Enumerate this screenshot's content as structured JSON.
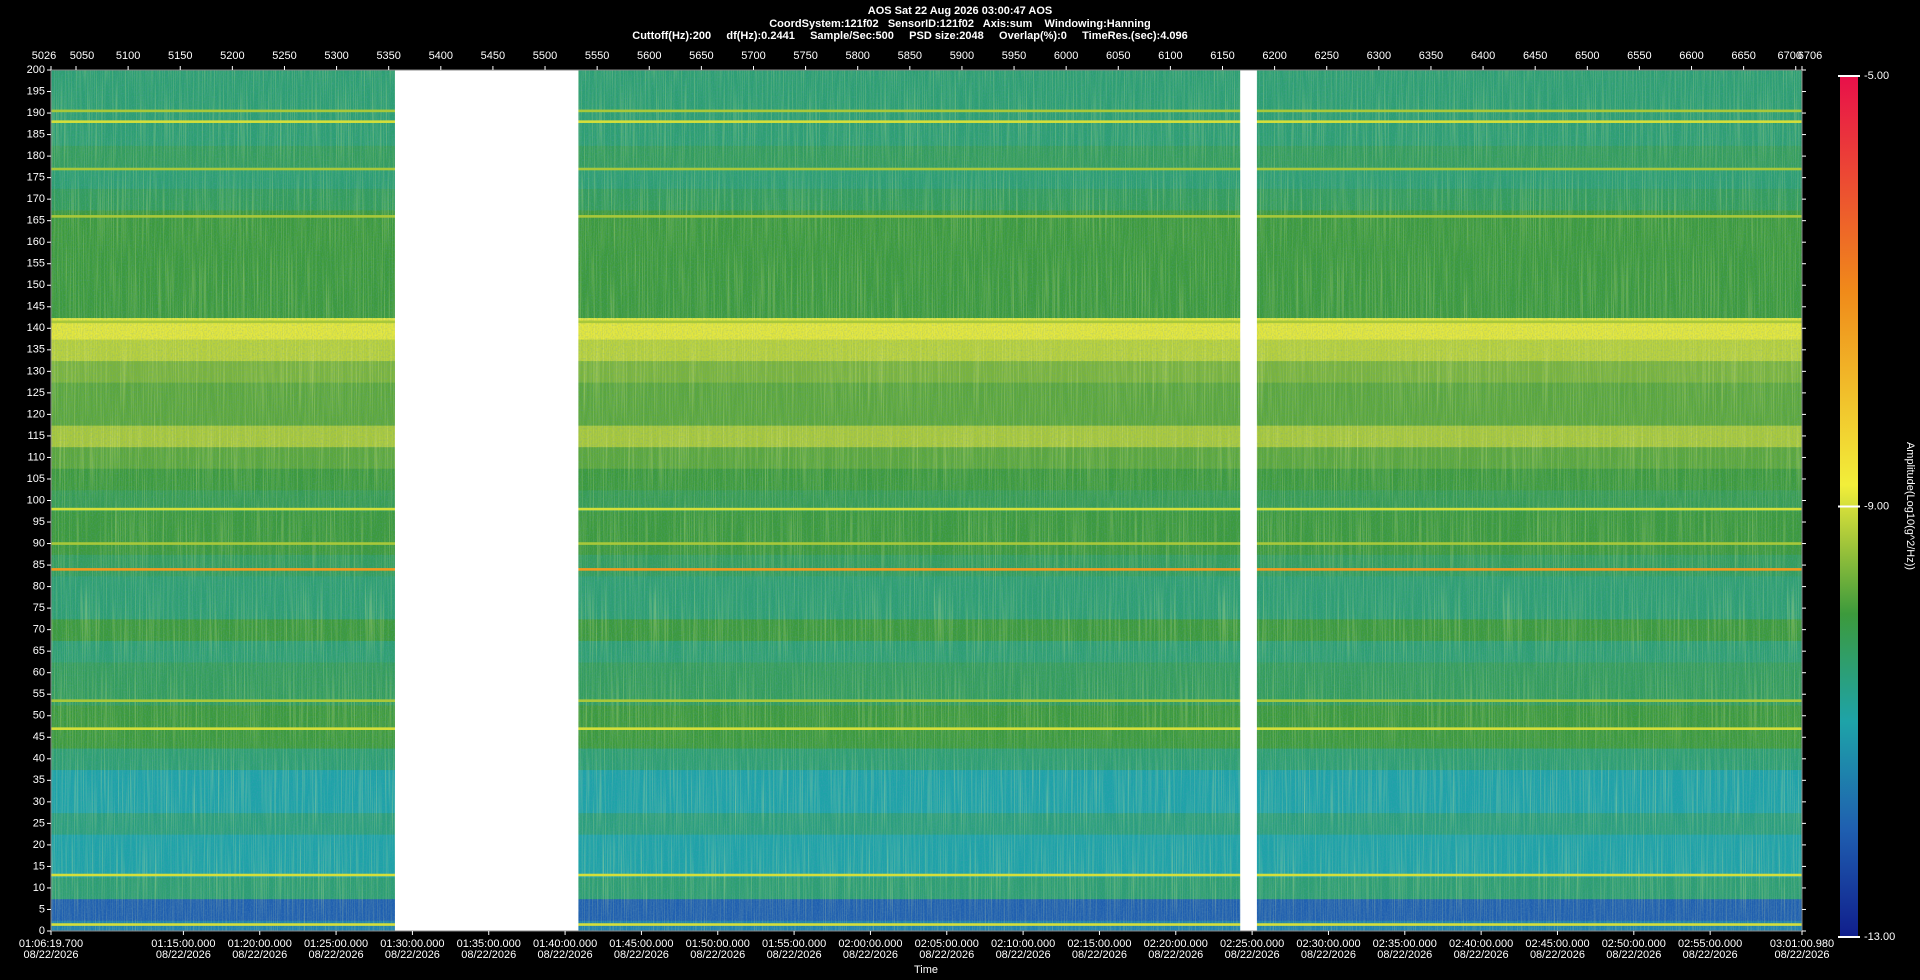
{
  "chart_data": {
    "type": "spectrogram",
    "title": "AOS  Sat 22 Aug 2026 03:00:47  AOS",
    "subtitle": "CoordSystem:121f02   SensorID:121f02   Axis:sum    Windowing:Hanning",
    "info": "Cuttoff(Hz):200     df(Hz):0.2441     Sample/Sec:500     PSD size:2048     Overlap(%):0     TimeRes.(sec):4.096",
    "x_label": "Time",
    "colorbar_label": "Amplitude(Log10(g^2/Hz))",
    "ylim": [
      0,
      200
    ],
    "yticks": [
      0,
      5,
      10,
      15,
      20,
      25,
      30,
      35,
      40,
      45,
      50,
      55,
      60,
      65,
      70,
      75,
      80,
      85,
      90,
      95,
      100,
      105,
      110,
      115,
      120,
      125,
      130,
      135,
      140,
      145,
      150,
      155,
      160,
      165,
      170,
      175,
      180,
      185,
      190,
      195,
      200
    ],
    "x2lim": [
      5026,
      6706
    ],
    "x2ticks": [
      5026,
      5050,
      5100,
      5150,
      5200,
      5250,
      5300,
      5350,
      5400,
      5450,
      5500,
      5550,
      5600,
      5650,
      5700,
      5750,
      5800,
      5850,
      5900,
      5950,
      6000,
      6050,
      6100,
      6150,
      6200,
      6250,
      6300,
      6350,
      6400,
      6450,
      6500,
      6550,
      6600,
      6650,
      6700,
      6706
    ],
    "xlim": [
      3979.7,
      10860.98
    ],
    "xticks": [
      {
        "value": 3979.7,
        "label": "01:06:19.700",
        "date": "08/22/2026"
      },
      {
        "value": 4500,
        "label": "01:15:00.000",
        "date": "08/22/2026"
      },
      {
        "value": 4800,
        "label": "01:20:00.000",
        "date": "08/22/2026"
      },
      {
        "value": 5100,
        "label": "01:25:00.000",
        "date": "08/22/2026"
      },
      {
        "value": 5400,
        "label": "01:30:00.000",
        "date": "08/22/2026"
      },
      {
        "value": 5700,
        "label": "01:35:00.000",
        "date": "08/22/2026"
      },
      {
        "value": 6000,
        "label": "01:40:00.000",
        "date": "08/22/2026"
      },
      {
        "value": 6300,
        "label": "01:45:00.000",
        "date": "08/22/2026"
      },
      {
        "value": 6600,
        "label": "01:50:00.000",
        "date": "08/22/2026"
      },
      {
        "value": 6900,
        "label": "01:55:00.000",
        "date": "08/22/2026"
      },
      {
        "value": 7200,
        "label": "02:00:00.000",
        "date": "08/22/2026"
      },
      {
        "value": 7500,
        "label": "02:05:00.000",
        "date": "08/22/2026"
      },
      {
        "value": 7800,
        "label": "02:10:00.000",
        "date": "08/22/2026"
      },
      {
        "value": 8100,
        "label": "02:15:00.000",
        "date": "08/22/2026"
      },
      {
        "value": 8400,
        "label": "02:20:00.000",
        "date": "08/22/2026"
      },
      {
        "value": 8700,
        "label": "02:25:00.000",
        "date": "08/22/2026"
      },
      {
        "value": 9000,
        "label": "02:30:00.000",
        "date": "08/22/2026"
      },
      {
        "value": 9300,
        "label": "02:35:00.000",
        "date": "08/22/2026"
      },
      {
        "value": 9600,
        "label": "02:40:00.000",
        "date": "08/22/2026"
      },
      {
        "value": 9900,
        "label": "02:45:00.000",
        "date": "08/22/2026"
      },
      {
        "value": 10200,
        "label": "02:50:00.000",
        "date": "08/22/2026"
      },
      {
        "value": 10500,
        "label": "02:55:00.000",
        "date": "08/22/2026"
      },
      {
        "value": 10860.98,
        "label": "03:01:00.980",
        "date": "08/22/2026"
      }
    ],
    "clim": [
      -13,
      -5
    ],
    "cticks": [
      {
        "value": -5,
        "label": "-5.00"
      },
      {
        "value": -9,
        "label": "-9.00"
      },
      {
        "value": -13,
        "label": "-13.00"
      }
    ],
    "colorscale": [
      [
        -13,
        "#101e8c"
      ],
      [
        -12,
        "#1f5fb0"
      ],
      [
        -11,
        "#1ea3a8"
      ],
      [
        -10,
        "#3c9a3c"
      ],
      [
        -9.3,
        "#a8c83a"
      ],
      [
        -8.8,
        "#f2ee3a"
      ],
      [
        -7,
        "#f08a1a"
      ],
      [
        -5,
        "#e8104a"
      ]
    ],
    "gaps": [
      [
        5356,
        5532
      ],
      [
        6167,
        6183
      ]
    ],
    "profile": {
      "freq": [
        0,
        5,
        10,
        15,
        20,
        25,
        30,
        35,
        40,
        45,
        50,
        55,
        60,
        65,
        70,
        75,
        80,
        85,
        90,
        95,
        100,
        105,
        110,
        115,
        120,
        125,
        130,
        135,
        140,
        145,
        150,
        155,
        160,
        165,
        170,
        175,
        180,
        185,
        190,
        195,
        200
      ],
      "level": [
        -11.5,
        -12,
        -10.5,
        -11,
        -11,
        -10.6,
        -11,
        -11,
        -10.5,
        -10,
        -10,
        -10.3,
        -10.3,
        -10.5,
        -10,
        -10.5,
        -10.5,
        -10.3,
        -10,
        -10,
        -10.2,
        -10,
        -9.8,
        -9.3,
        -9.8,
        -9.8,
        -9.6,
        -9.2,
        -8.9,
        -10,
        -10,
        -10,
        -10,
        -10,
        -10.3,
        -10.5,
        -10.3,
        -10.5,
        -10.5,
        -10.5,
        -10.5
      ]
    },
    "lines": {
      "freq": [
        1.5,
        13,
        47,
        53.5,
        84,
        90,
        98,
        141.5,
        166,
        177,
        188,
        190.5
      ],
      "level": [
        -9,
        -9,
        -9,
        -9.3,
        -7.3,
        -9.3,
        -9,
        -9.3,
        -9.3,
        -9.3,
        -9,
        -9.3
      ]
    }
  }
}
